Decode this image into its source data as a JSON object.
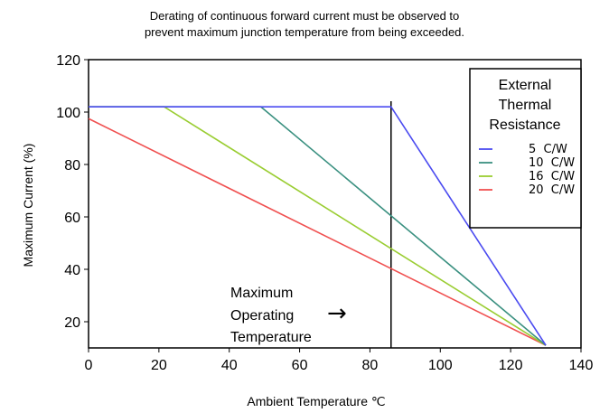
{
  "chart_data": {
    "type": "line",
    "title_lines": [
      "Derating of continuous forward current must be observed to",
      "prevent maximum junction temperature from being exceeded."
    ],
    "xlabel": "Ambient Temperature ℃",
    "ylabel": "Maximum Current (%)",
    "xlim": [
      0,
      140
    ],
    "ylim": [
      10,
      120
    ],
    "x_ticks": [
      0,
      20,
      40,
      60,
      80,
      100,
      120,
      140
    ],
    "y_ticks": [
      20,
      40,
      60,
      80,
      100,
      120
    ],
    "grid": false,
    "legend": {
      "title_lines": [
        "External",
        "Thermal",
        "Resistance"
      ],
      "placement": "top-right"
    },
    "series": [
      {
        "name": "5  C/W",
        "color": "#4b4bf0",
        "x": [
          0,
          86,
          130
        ],
        "y": [
          102,
          102,
          11
        ]
      },
      {
        "name": "10  C/W",
        "color": "#3a9080",
        "x": [
          0,
          49,
          130
        ],
        "y": [
          102,
          102,
          11
        ]
      },
      {
        "name": "16  C/W",
        "color": "#9acd32",
        "x": [
          0,
          21.5,
          130
        ],
        "y": [
          102,
          102,
          11
        ]
      },
      {
        "name": "20  C/W",
        "color": "#f05050",
        "x": [
          0,
          130
        ],
        "y": [
          97.5,
          11
        ]
      }
    ],
    "vline": {
      "x": 86
    },
    "annotation": {
      "lines": [
        "Maximum",
        "Operating",
        "Temperature"
      ],
      "arrow": "→"
    }
  }
}
